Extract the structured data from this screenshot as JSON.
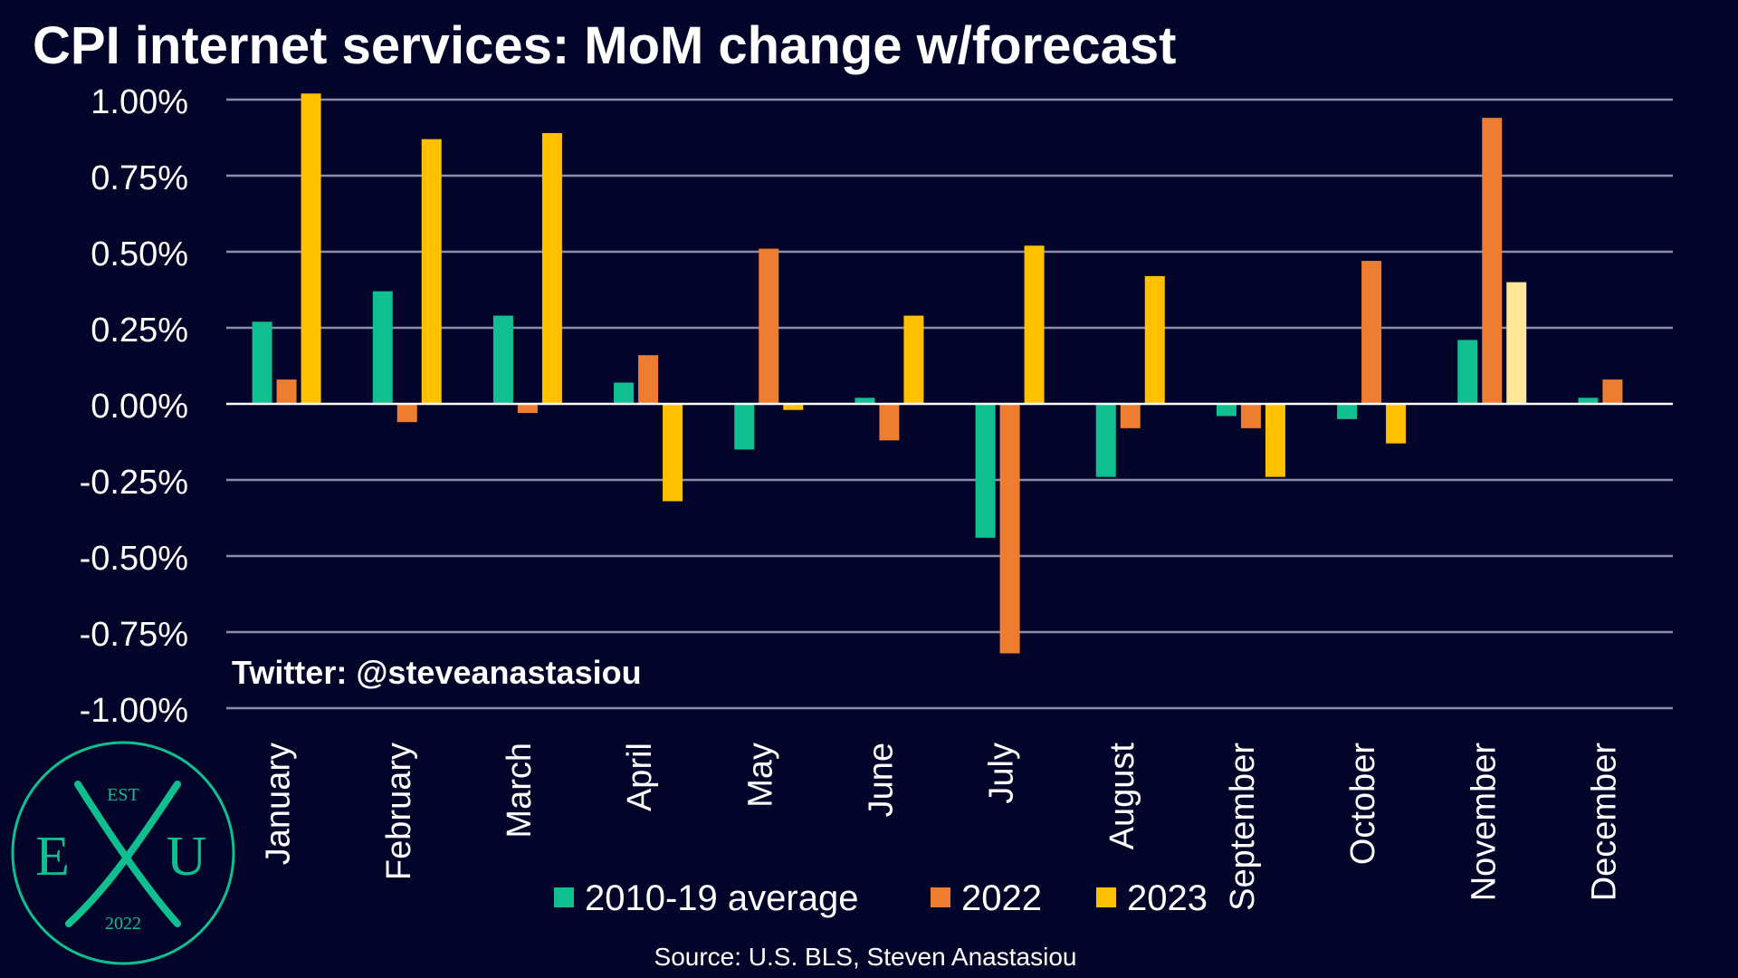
{
  "chart_data": {
    "type": "bar",
    "title": "CPI internet services: MoM change w/forecast",
    "categories": [
      "January",
      "February",
      "March",
      "April",
      "May",
      "June",
      "July",
      "August",
      "September",
      "October",
      "November",
      "December"
    ],
    "series": [
      {
        "name": "2010-19 average",
        "color": "#0fbf8f",
        "values": [
          0.27,
          0.37,
          0.29,
          0.07,
          -0.15,
          0.02,
          -0.44,
          -0.24,
          -0.04,
          -0.05,
          0.21,
          0.02
        ]
      },
      {
        "name": "2022",
        "color": "#ed7d31",
        "values": [
          0.08,
          -0.06,
          -0.03,
          0.16,
          0.51,
          -0.12,
          -0.82,
          -0.08,
          -0.08,
          0.47,
          0.94,
          0.08
        ]
      },
      {
        "name": "2023",
        "color": "#ffc000",
        "forecast_color": "#ffe699",
        "forecast_index": 10,
        "values": [
          1.02,
          0.87,
          0.89,
          -0.32,
          -0.02,
          0.29,
          0.52,
          0.42,
          -0.24,
          -0.13,
          0.4,
          null
        ]
      }
    ],
    "ylim": [
      -1.0,
      1.0
    ],
    "yticks": [
      "1.00%",
      "0.75%",
      "0.50%",
      "0.25%",
      "0.00%",
      "-0.25%",
      "-0.50%",
      "-0.75%",
      "-1.00%"
    ],
    "ytick_values": [
      1.0,
      0.75,
      0.5,
      0.25,
      0.0,
      -0.25,
      -0.5,
      -0.75,
      -1.0
    ],
    "grid": true,
    "legend": "bottom"
  },
  "annotation": "Twitter: @steveanastasiou",
  "source": "Source: U.S. BLS, Steven Anastasiou",
  "logo": {
    "top": "EST",
    "left": "E",
    "center": "X",
    "right": "U",
    "bottom": "2022",
    "color": "#0fbf8f"
  }
}
